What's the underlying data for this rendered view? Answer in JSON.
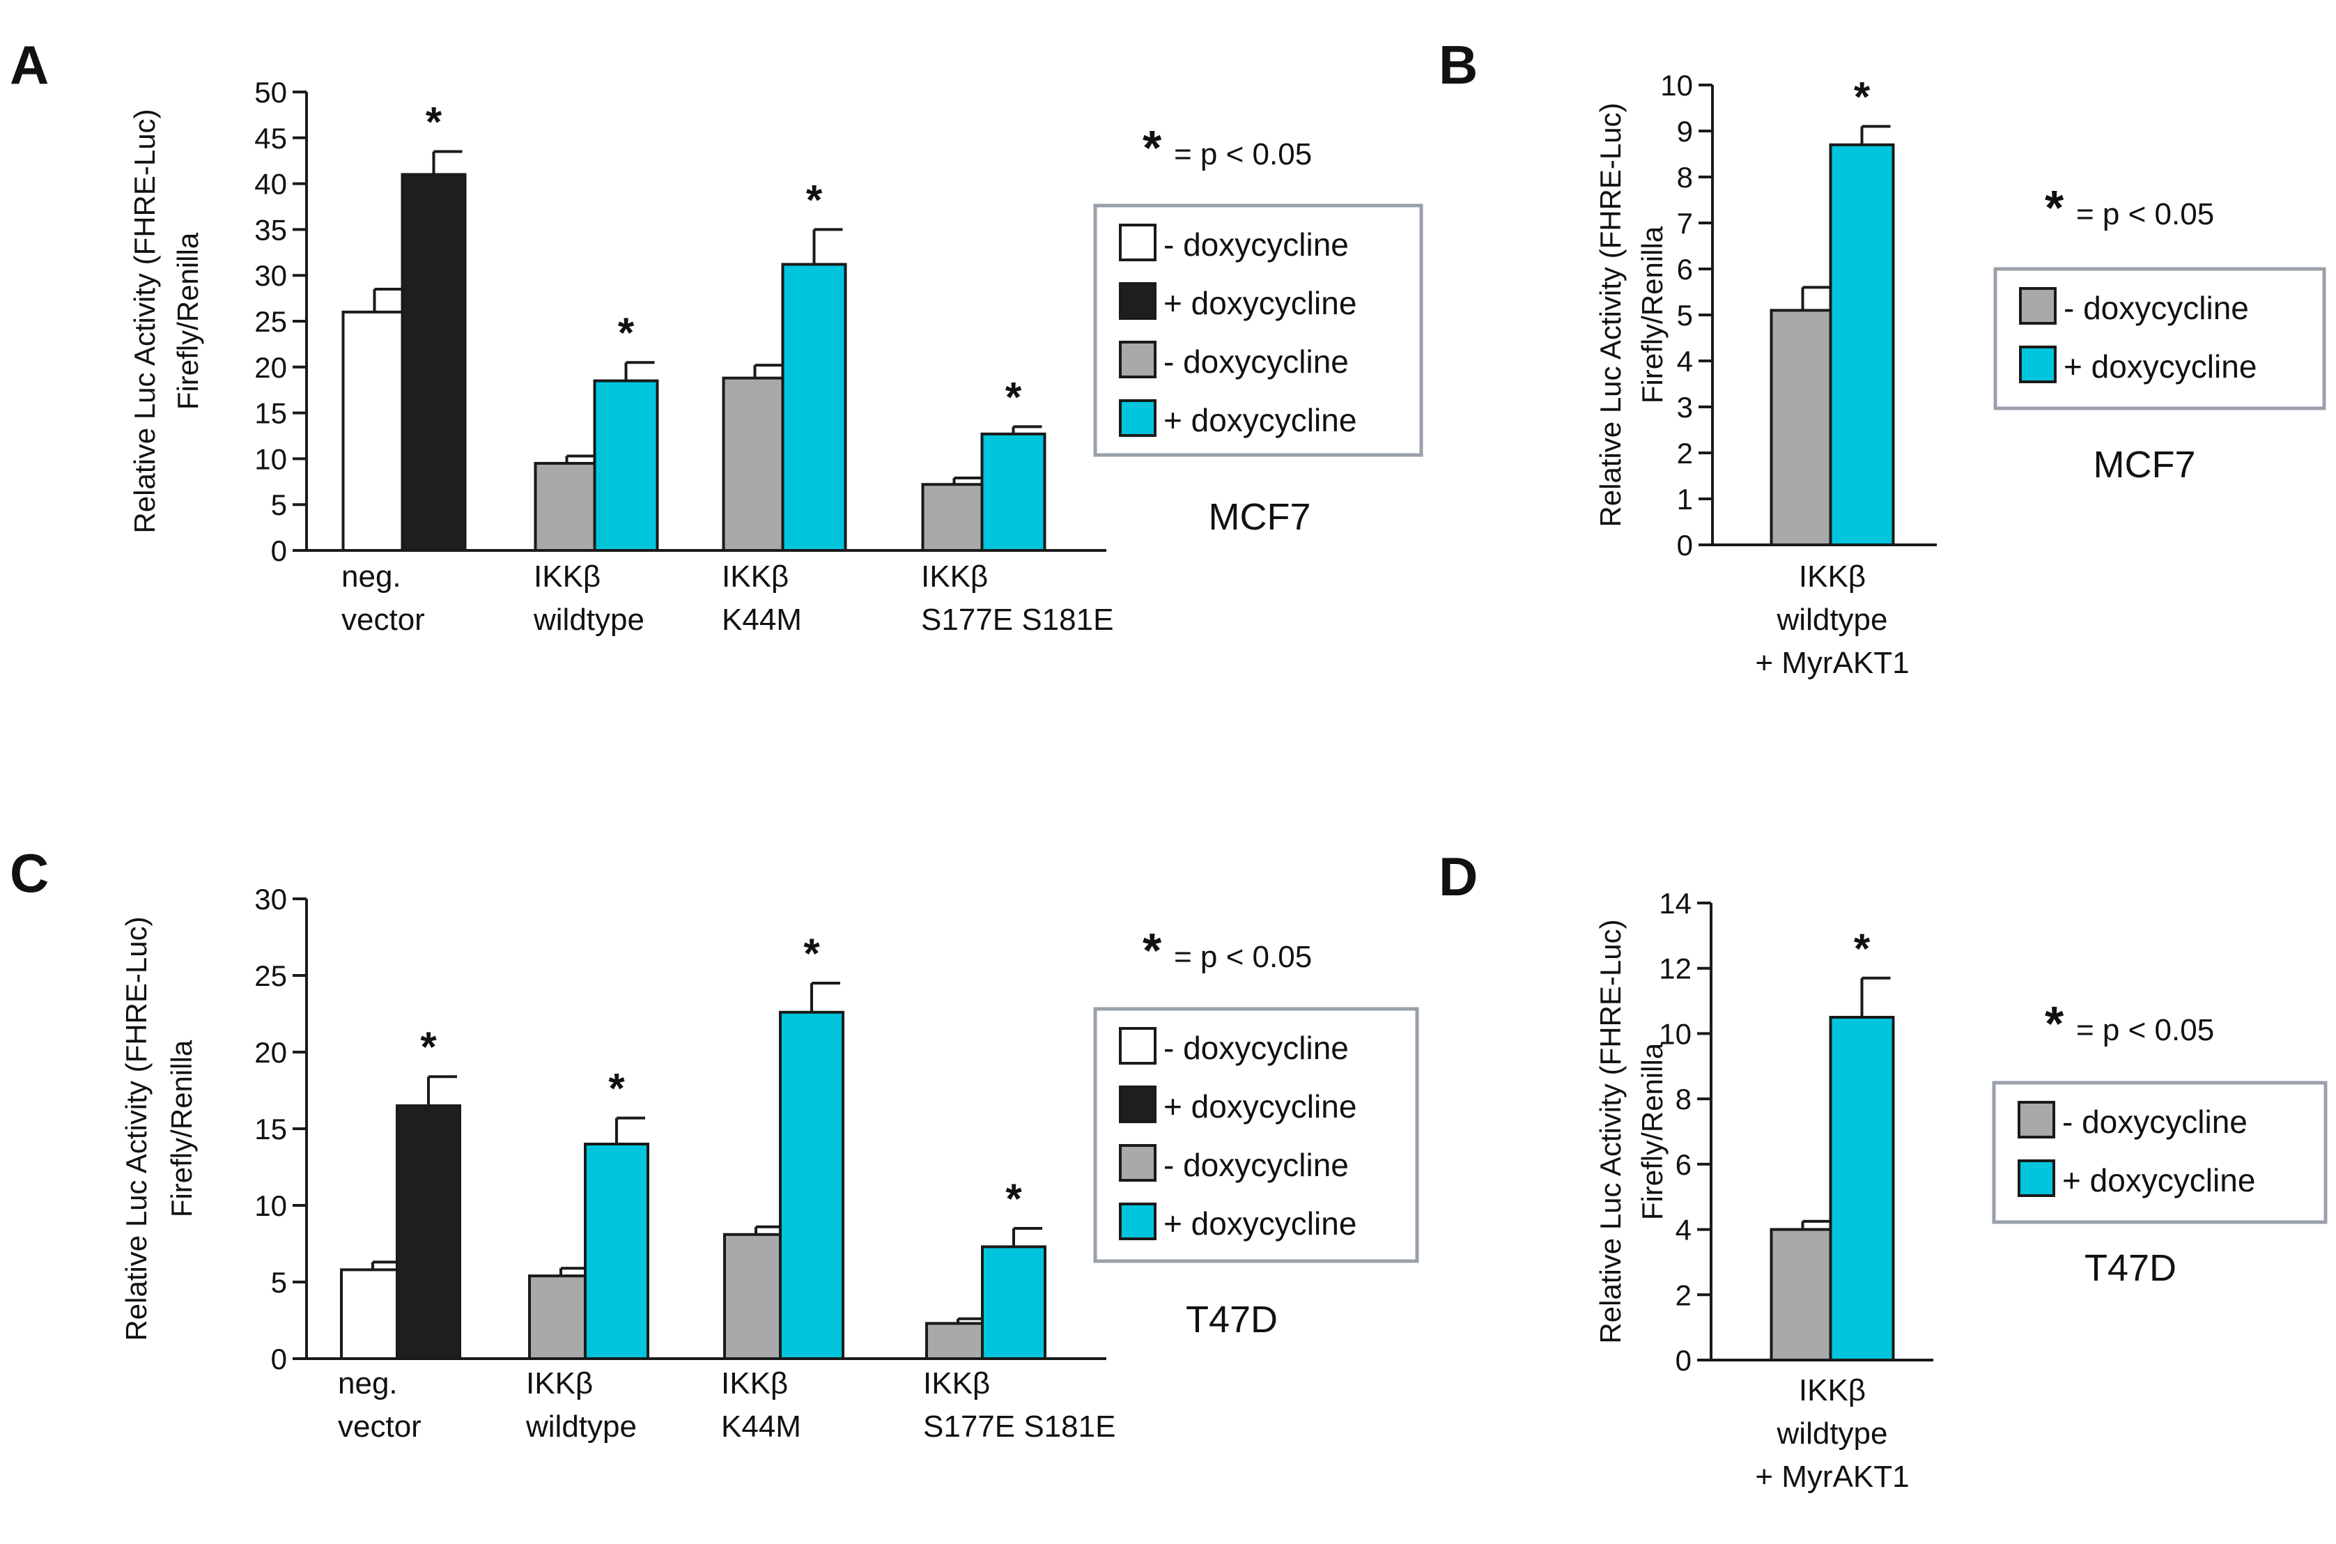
{
  "colors": {
    "minus_control": "#ffffff",
    "plus_control": "#1e1e1e",
    "minus_treatment": "#a9a9a9",
    "plus_treatment": "#00c5dc",
    "stroke": "#1a1a1a",
    "legend_border": "#9aa0aa"
  },
  "chart_data": [
    {
      "type": "bar",
      "panel": "A",
      "cell_line": "MCF7",
      "ylabel": [
        "Relative Luc Activity (FHRE-Luc)",
        "Firefly/Renilla"
      ],
      "ylim": [
        0,
        50
      ],
      "yticks": [
        0,
        5,
        10,
        15,
        20,
        25,
        30,
        35,
        40,
        45,
        50
      ],
      "categories": [
        [
          "neg.",
          "vector"
        ],
        [
          "IKKβ",
          "wildtype"
        ],
        [
          "IKKβ",
          "K44M"
        ],
        [
          "IKKβ",
          "S177E S181E"
        ]
      ],
      "series": [
        {
          "name": "- doxycycline",
          "values": [
            26,
            9.5,
            18.8,
            7.2
          ],
          "errors": [
            2.5,
            0.8,
            1.4,
            0.7
          ],
          "colors": [
            "minus_control",
            "minus_treatment",
            "minus_treatment",
            "minus_treatment"
          ]
        },
        {
          "name": "+ doxycycline",
          "values": [
            41,
            18.5,
            31.2,
            12.7
          ],
          "errors": [
            2.5,
            2,
            3.8,
            0.8
          ],
          "colors": [
            "plus_control",
            "plus_treatment",
            "plus_treatment",
            "plus_treatment"
          ],
          "significant": [
            true,
            true,
            true,
            true
          ]
        }
      ],
      "legend": [
        {
          "label": "- doxycycline",
          "color": "minus_control"
        },
        {
          "label": "+ doxycycline",
          "color": "plus_control"
        },
        {
          "label": "- doxycycline",
          "color": "minus_treatment"
        },
        {
          "label": "+ doxycycline",
          "color": "plus_treatment"
        }
      ],
      "significance_note": {
        "star": "*",
        "text": "= p < 0.05"
      }
    },
    {
      "type": "bar",
      "panel": "B",
      "cell_line": "MCF7",
      "ylabel": [
        "Relative Luc Activity (FHRE-Luc)",
        "Firefly/Renilla"
      ],
      "ylim": [
        0,
        10
      ],
      "yticks": [
        0,
        1,
        2,
        3,
        4,
        5,
        6,
        7,
        8,
        9,
        10
      ],
      "categories": [
        [
          "IKKβ",
          "wildtype",
          "+ MyrAKT1"
        ]
      ],
      "series": [
        {
          "name": "- doxycycline",
          "values": [
            5.1
          ],
          "errors": [
            0.5
          ],
          "colors": [
            "minus_treatment"
          ]
        },
        {
          "name": "+ doxycycline",
          "values": [
            8.7
          ],
          "errors": [
            0.4
          ],
          "colors": [
            "plus_treatment"
          ],
          "significant": [
            true
          ]
        }
      ],
      "legend": [
        {
          "label": "- doxycycline",
          "color": "minus_treatment"
        },
        {
          "label": "+ doxycycline",
          "color": "plus_treatment"
        }
      ],
      "significance_note": {
        "star": "*",
        "text": "= p < 0.05"
      }
    },
    {
      "type": "bar",
      "panel": "C",
      "cell_line": "T47D",
      "ylabel": [
        "Relative Luc Activity (FHRE-Luc)",
        "Firefly/Renilla"
      ],
      "ylim": [
        0,
        30
      ],
      "yticks": [
        0,
        5,
        10,
        15,
        20,
        25,
        30
      ],
      "categories": [
        [
          "neg.",
          "vector"
        ],
        [
          "IKKβ",
          "wildtype"
        ],
        [
          "IKKβ",
          "K44M"
        ],
        [
          "IKKβ",
          "S177E S181E"
        ]
      ],
      "series": [
        {
          "name": "- doxycycline",
          "values": [
            5.8,
            5.4,
            8.1,
            2.3
          ],
          "errors": [
            0.5,
            0.5,
            0.5,
            0.3
          ],
          "colors": [
            "minus_control",
            "minus_treatment",
            "minus_treatment",
            "minus_treatment"
          ]
        },
        {
          "name": "+ doxycycline",
          "values": [
            16.5,
            14,
            22.6,
            7.3
          ],
          "errors": [
            1.9,
            1.7,
            1.9,
            1.2
          ],
          "colors": [
            "plus_control",
            "plus_treatment",
            "plus_treatment",
            "plus_treatment"
          ],
          "significant": [
            true,
            true,
            true,
            true
          ]
        }
      ],
      "legend": [
        {
          "label": "- doxycycline",
          "color": "minus_control"
        },
        {
          "label": "+ doxycycline",
          "color": "plus_control"
        },
        {
          "label": "- doxycycline",
          "color": "minus_treatment"
        },
        {
          "label": "+ doxycycline",
          "color": "plus_treatment"
        }
      ],
      "significance_note": {
        "star": "*",
        "text": "= p < 0.05"
      }
    },
    {
      "type": "bar",
      "panel": "D",
      "cell_line": "T47D",
      "ylabel": [
        "Relative Luc Activity (FHRE-Luc)",
        "Firefly/Renilla"
      ],
      "ylim": [
        0,
        14
      ],
      "yticks": [
        0,
        2,
        4,
        6,
        8,
        10,
        12,
        14
      ],
      "categories": [
        [
          "IKKβ",
          "wildtype",
          "+ MyrAKT1"
        ]
      ],
      "series": [
        {
          "name": "- doxycycline",
          "values": [
            4
          ],
          "errors": [
            0.25
          ],
          "colors": [
            "minus_treatment"
          ]
        },
        {
          "name": "+ doxycycline",
          "values": [
            10.5
          ],
          "errors": [
            1.2
          ],
          "colors": [
            "plus_treatment"
          ],
          "significant": [
            true
          ]
        }
      ],
      "legend": [
        {
          "label": "- doxycycline",
          "color": "minus_treatment"
        },
        {
          "label": "+ doxycycline",
          "color": "plus_treatment"
        }
      ],
      "significance_note": {
        "star": "*",
        "text": "= p < 0.05"
      }
    }
  ]
}
